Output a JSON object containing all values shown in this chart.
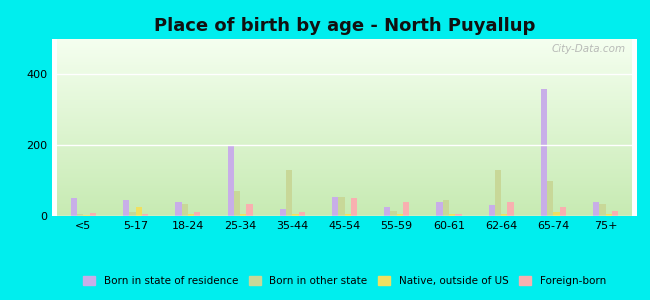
{
  "title": "Place of birth by age - North Puyallup",
  "categories": [
    "<5",
    "5-17",
    "18-24",
    "25-34",
    "35-44",
    "45-54",
    "55-59",
    "60-61",
    "62-64",
    "65-74",
    "75+"
  ],
  "series": {
    "Born in state of residence": [
      50,
      45,
      40,
      200,
      20,
      55,
      25,
      40,
      30,
      360,
      40
    ],
    "Born in other state": [
      5,
      10,
      35,
      70,
      130,
      55,
      15,
      45,
      130,
      100,
      35
    ],
    "Native, outside of US": [
      3,
      25,
      5,
      5,
      5,
      5,
      5,
      5,
      5,
      10,
      5
    ],
    "Foreign-born": [
      8,
      5,
      10,
      35,
      10,
      50,
      40,
      5,
      40,
      25,
      15
    ]
  },
  "colors": {
    "Born in state of residence": "#c8aee8",
    "Born in other state": "#c8d898",
    "Native, outside of US": "#f0e060",
    "Foreign-born": "#f8b0b0"
  },
  "ylim": [
    0,
    500
  ],
  "yticks": [
    0,
    200,
    400
  ],
  "bar_width": 0.12,
  "figsize": [
    6.5,
    3.0
  ],
  "dpi": 100,
  "background_color": "#00eeee",
  "bg_color_top": "#e8f8e0",
  "bg_color_bottom": "#c8e8b0",
  "title_fontsize": 13,
  "legend_fontsize": 7.5,
  "tick_fontsize": 8,
  "watermark": "City-Data.com"
}
